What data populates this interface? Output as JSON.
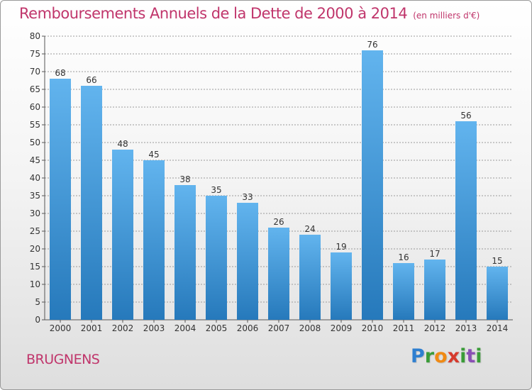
{
  "title": "Remboursements Annuels de la Dette de 2000 à 2014",
  "unit_label": "(en milliers d'€)",
  "commune": "BRUGNENS",
  "brand": {
    "letters": [
      "P",
      "r",
      "o",
      "x",
      "i",
      "t",
      "i"
    ],
    "colors": [
      "#2e7fd0",
      "#3a9c38",
      "#f08a14",
      "#d63a2d",
      "#3a9c38",
      "#8a4fb5",
      "#3a9c38"
    ]
  },
  "colors": {
    "title": "#c0356b",
    "bar_top": "#62b4ee",
    "bar_bottom": "#2679bb",
    "grid": "#9a9a9a"
  },
  "chart_data": {
    "type": "bar",
    "title": "Remboursements Annuels de la Dette de 2000 à 2014",
    "xlabel": "",
    "ylabel": "(en milliers d'€)",
    "categories": [
      "2000",
      "2001",
      "2002",
      "2003",
      "2004",
      "2005",
      "2006",
      "2007",
      "2008",
      "2009",
      "2010",
      "2011",
      "2012",
      "2013",
      "2014"
    ],
    "values": [
      68,
      66,
      48,
      45,
      38,
      35,
      33,
      26,
      24,
      19,
      76,
      16,
      17,
      56,
      15
    ],
    "ylim": [
      0,
      80
    ],
    "yticks": [
      0,
      5,
      10,
      15,
      20,
      25,
      30,
      35,
      40,
      45,
      50,
      55,
      60,
      65,
      70,
      75,
      80
    ],
    "grid": true
  }
}
